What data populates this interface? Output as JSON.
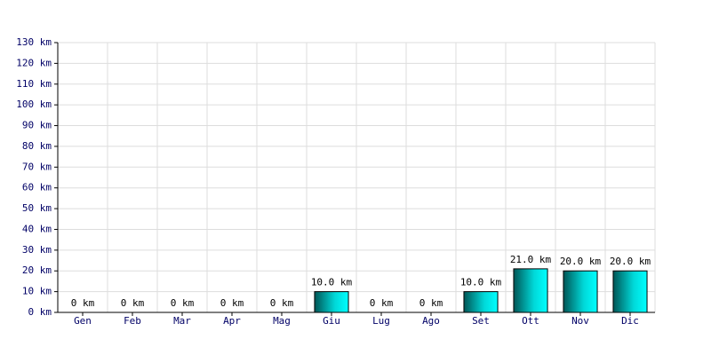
{
  "chart_data": {
    "type": "bar",
    "categories": [
      "Gen",
      "Feb",
      "Mar",
      "Apr",
      "Mag",
      "Giu",
      "Lug",
      "Ago",
      "Set",
      "Ott",
      "Nov",
      "Dic"
    ],
    "values": [
      0,
      0,
      0,
      0,
      0,
      10,
      0,
      0,
      10,
      21,
      20,
      20
    ],
    "value_labels": [
      "0 km",
      "0 km",
      "0 km",
      "0 km",
      "0 km",
      "10.0 km",
      "0 km",
      "0 km",
      "10.0 km",
      "21.0 km",
      "20.0 km",
      "20.0 km"
    ],
    "color": "#00d8d8",
    "ylim": [
      0,
      130
    ],
    "yticks": [
      {
        "value": 0,
        "label": "0 km"
      },
      {
        "value": 10,
        "label": "10 km"
      },
      {
        "value": 20,
        "label": "20 km"
      },
      {
        "value": 30,
        "label": "30 km"
      },
      {
        "value": 40,
        "label": "40 km"
      },
      {
        "value": 50,
        "label": "50 km"
      },
      {
        "value": 60,
        "label": "60 km"
      },
      {
        "value": 70,
        "label": "70 km"
      },
      {
        "value": 80,
        "label": "80 km"
      },
      {
        "value": 90,
        "label": "90 km"
      },
      {
        "value": 100,
        "label": "100 km"
      },
      {
        "value": 110,
        "label": "110 km"
      },
      {
        "value": 120,
        "label": "120 km"
      },
      {
        "value": 130,
        "label": "130 km"
      }
    ],
    "grid": true
  }
}
